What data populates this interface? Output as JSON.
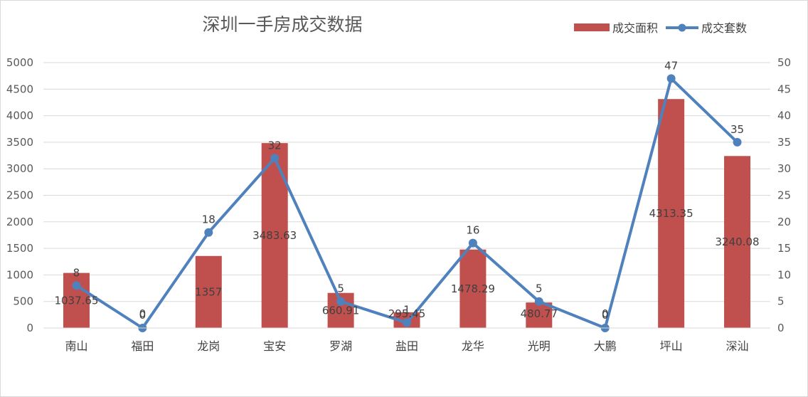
{
  "chart_data": {
    "type": "bar",
    "title": "深圳一手房成交数据",
    "categories": [
      "南山",
      "福田",
      "龙岗",
      "宝安",
      "罗湖",
      "盐田",
      "龙华",
      "光明",
      "大鹏",
      "坪山",
      "深汕"
    ],
    "series": [
      {
        "name": "成交面积",
        "type": "bar",
        "axis": "left",
        "color": "#c0504d",
        "values": [
          1037.65,
          0,
          1357,
          3483.63,
          660.91,
          295.45,
          1478.29,
          480.77,
          0,
          4313.35,
          3240.08
        ],
        "labels": [
          "1037.65",
          "0",
          "1357",
          "3483.63",
          "660.91",
          "295.45",
          "1478.29",
          "480.77",
          "0",
          "4313.35",
          "3240.08"
        ]
      },
      {
        "name": "成交套数",
        "type": "line",
        "axis": "right",
        "color": "#4f81bd",
        "values": [
          8,
          0,
          18,
          32,
          5,
          1,
          16,
          5,
          0,
          47,
          35
        ],
        "labels": [
          "8",
          "0",
          "18",
          "32",
          "5",
          "1",
          "16",
          "5",
          "0",
          "47",
          "35"
        ]
      }
    ],
    "y_left": {
      "ylim": [
        0,
        5000
      ],
      "ticks": [
        "0",
        "500",
        "1000",
        "1500",
        "2000",
        "2500",
        "3000",
        "3500",
        "4000",
        "4500",
        "5000"
      ]
    },
    "y_right": {
      "ylim": [
        0,
        50
      ],
      "ticks": [
        "0",
        "5",
        "10",
        "15",
        "20",
        "25",
        "30",
        "35",
        "40",
        "45",
        "50"
      ]
    },
    "grid": true,
    "legend_position": "top-right"
  }
}
